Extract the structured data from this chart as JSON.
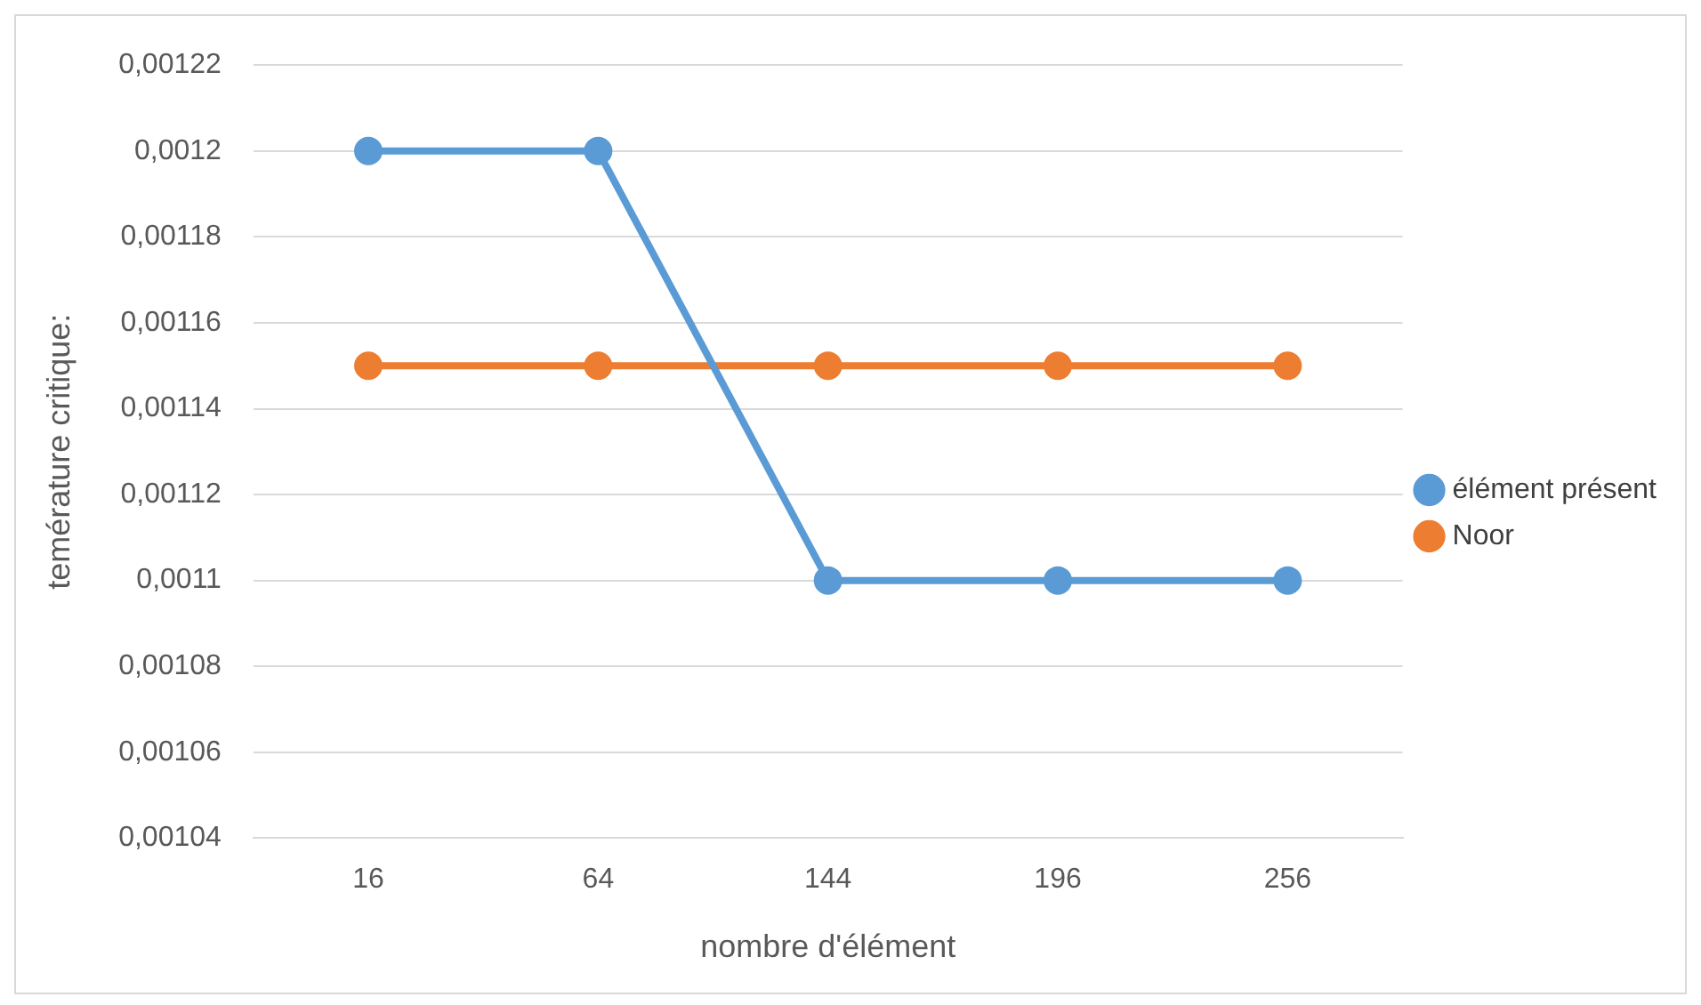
{
  "chart_data": {
    "type": "line",
    "xlabel": "nombre d'élément",
    "ylabel": "temérature critique:",
    "categories": [
      "16",
      "64",
      "144",
      "196",
      "256"
    ],
    "series": [
      {
        "name": "élément présent",
        "color": "#5b9bd5",
        "values": [
          0.0012,
          0.0012,
          0.0011,
          0.0011,
          0.0011
        ]
      },
      {
        "name": "Noor",
        "color": "#ed7d31",
        "values": [
          0.00115,
          0.00115,
          0.00115,
          0.00115,
          0.00115
        ]
      }
    ],
    "ylim": [
      0.00104,
      0.00122
    ],
    "yticks": [
      {
        "value": 0.00104,
        "label": "0,00104"
      },
      {
        "value": 0.00106,
        "label": "0,00106"
      },
      {
        "value": 0.00108,
        "label": "0,00108"
      },
      {
        "value": 0.0011,
        "label": "0,0011"
      },
      {
        "value": 0.00112,
        "label": "0,00112"
      },
      {
        "value": 0.00114,
        "label": "0,00114"
      },
      {
        "value": 0.00116,
        "label": "0,00116"
      },
      {
        "value": 0.00118,
        "label": "0,00118"
      },
      {
        "value": 0.0012,
        "label": "0,0012"
      },
      {
        "value": 0.00122,
        "label": "0,00122"
      }
    ],
    "grid": "y",
    "legend": "right",
    "marker": "circle",
    "line_style": "solid"
  }
}
